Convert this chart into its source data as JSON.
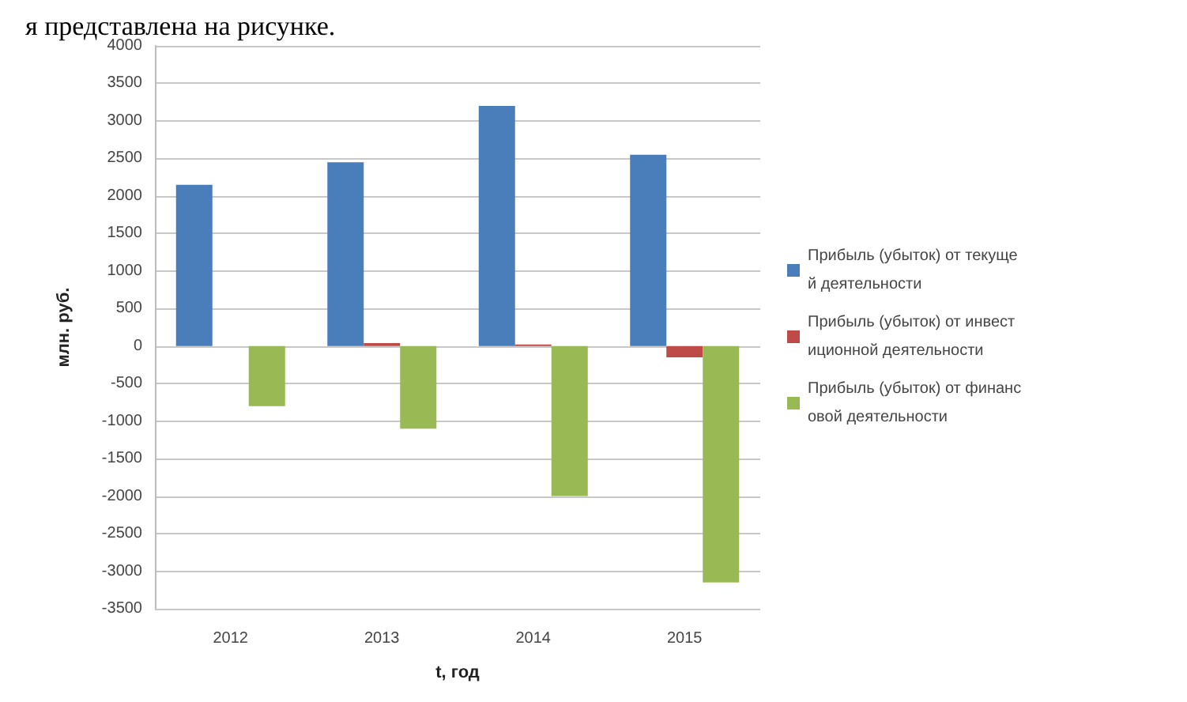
{
  "chart_data": {
    "type": "bar",
    "xlabel": "t, год",
    "ylabel": "млн. руб.",
    "annotations": [
      "я представлена на рисунке."
    ],
    "categories": [
      "2012",
      "2013",
      "2014",
      "2015"
    ],
    "series": [
      {
        "name": "Прибыль (убыток) от текущей деятельности",
        "color": "#4a7ebb",
        "values": [
          2150,
          2450,
          3200,
          2550
        ]
      },
      {
        "name": "Прибыль (убыток) от инвестиционной деятельности",
        "color": "#be4b48",
        "values": [
          0,
          40,
          20,
          -150
        ]
      },
      {
        "name": "Прибыль (убыток) от финансовой деятельности",
        "color": "#98b954",
        "values": [
          -800,
          -1100,
          -2000,
          -3150
        ]
      }
    ],
    "ylim": [
      -3500,
      4000
    ],
    "yticks": [
      -3500,
      -3000,
      -2500,
      -2000,
      -1500,
      -1000,
      -500,
      0,
      500,
      1000,
      1500,
      2000,
      2500,
      3000,
      3500,
      4000
    ],
    "grid": "y",
    "legend": "right"
  }
}
